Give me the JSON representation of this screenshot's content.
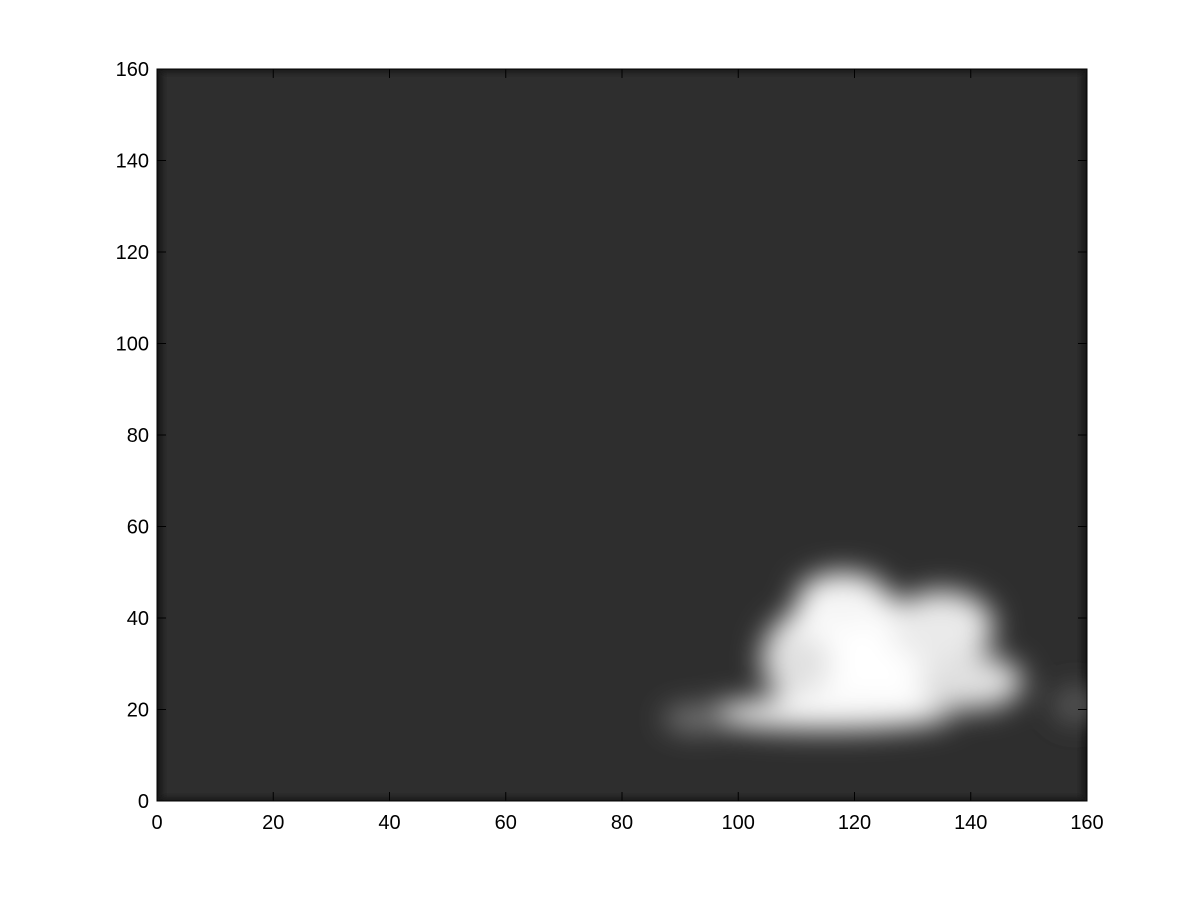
{
  "chart_data": {
    "type": "heatmap",
    "title": "",
    "xlabel": "",
    "ylabel": "",
    "xlim": [
      0,
      160
    ],
    "ylim": [
      0,
      160
    ],
    "x_ticks": [
      "0",
      "20",
      "40",
      "60",
      "80",
      "100",
      "120",
      "140",
      "160"
    ],
    "y_ticks": [
      "0",
      "20",
      "40",
      "60",
      "80",
      "100",
      "120",
      "140",
      "160"
    ],
    "colormap": "gray",
    "background_color": "#2d2d2d",
    "grid": false,
    "intensity_blobs": [
      {
        "cx": 121,
        "cy": 31,
        "rx": 17,
        "ry": 14,
        "peak": 1.0
      },
      {
        "cx": 118,
        "cy": 44,
        "rx": 8,
        "ry": 6,
        "peak": 0.95
      },
      {
        "cx": 135,
        "cy": 38,
        "rx": 9,
        "ry": 8,
        "peak": 0.9
      },
      {
        "cx": 110,
        "cy": 30,
        "rx": 6,
        "ry": 7,
        "peak": 0.85
      },
      {
        "cx": 140,
        "cy": 26,
        "rx": 9,
        "ry": 6,
        "peak": 0.85
      },
      {
        "cx": 115,
        "cy": 19,
        "rx": 22,
        "ry": 3.5,
        "peak": 0.95
      },
      {
        "cx": 93,
        "cy": 18,
        "rx": 6,
        "ry": 3,
        "peak": 0.35
      },
      {
        "cx": 158,
        "cy": 21,
        "rx": 4,
        "ry": 4,
        "peak": 0.2
      }
    ]
  }
}
